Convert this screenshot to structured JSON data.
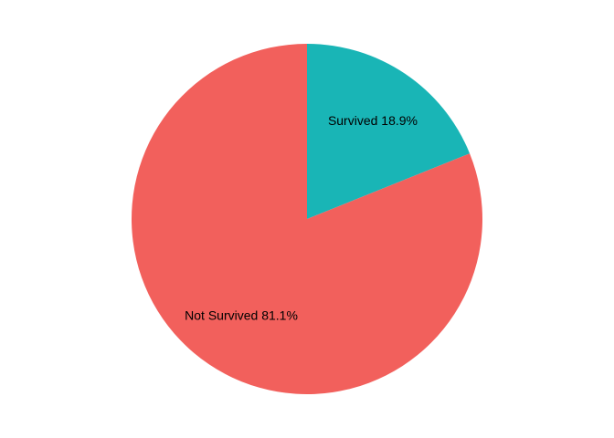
{
  "chart_data": {
    "type": "pie",
    "title": "",
    "start_angle": "12 o'clock",
    "direction": "clockwise",
    "slices": [
      {
        "name": "Survived",
        "value": 18.9,
        "label": "Survived 18.9%",
        "color": "#19B5B6"
      },
      {
        "name": "Not Survived",
        "value": 81.1,
        "label": "Not Survived 81.1%",
        "color": "#F2605C"
      }
    ]
  }
}
